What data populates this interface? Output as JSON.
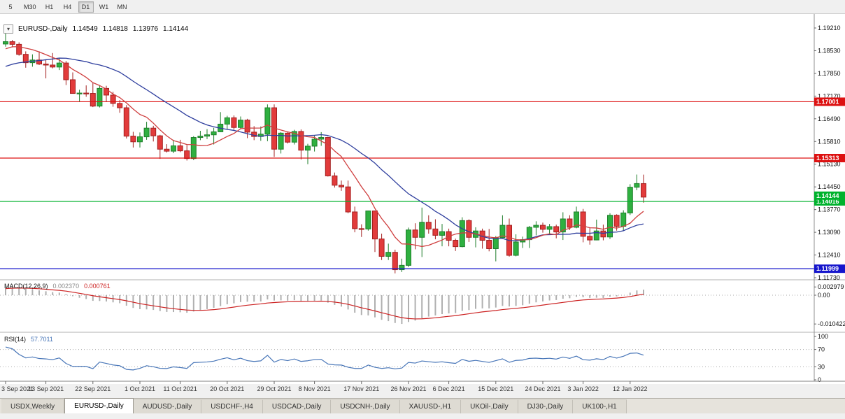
{
  "toolbar": {
    "timeframes": [
      {
        "label": "5",
        "active": false
      },
      {
        "label": "M30",
        "active": false
      },
      {
        "label": "H1",
        "active": false
      },
      {
        "label": "H4",
        "active": false
      },
      {
        "label": "D1",
        "active": true
      },
      {
        "label": "W1",
        "active": false
      },
      {
        "label": "MN",
        "active": false
      }
    ]
  },
  "chart": {
    "collapse_arrow": "▾",
    "symbol_period": "EURUSD-,Daily",
    "open": "1.14549",
    "high": "1.14818",
    "low": "1.13976",
    "close": "1.14144"
  },
  "price_axis": {
    "labels": [
      "1.19210",
      "1.18530",
      "1.17850",
      "1.17170",
      "1.16490",
      "1.15810",
      "1.15130",
      "1.14450",
      "1.13770",
      "1.13090",
      "1.12410",
      "1.11730"
    ]
  },
  "hlines": [
    {
      "price": 1.17001,
      "label": "1.17001",
      "color": "#dd1111"
    },
    {
      "price": 1.15313,
      "label": "1.15313",
      "color": "#dd1111"
    },
    {
      "price": 1.14016,
      "label": "1.14016",
      "color": "#00b22d"
    },
    {
      "price": 1.11999,
      "label": "1.11999",
      "color": "#1515cc"
    }
  ],
  "current_price_tag": {
    "price": 1.14144,
    "label": "1.14144",
    "color": "#00b22d"
  },
  "macd": {
    "name": "MACD(12,26,9)",
    "value_main": "0.002370",
    "value_signal": "0.000761",
    "axis_labels": [
      {
        "text": "0.002979",
        "value": 0.002979
      },
      {
        "text": "0.00",
        "value": 0
      },
      {
        "text": "-0.010422",
        "value": -0.010422
      }
    ],
    "histogram_color": "#b0b0b0",
    "signal_color": "#cc2222"
  },
  "rsi": {
    "name": "RSI(14)",
    "value": "57.7011",
    "axis_labels": [
      {
        "text": "100",
        "value": 100
      },
      {
        "text": "70",
        "value": 70
      },
      {
        "text": "30",
        "value": 30
      },
      {
        "text": "0",
        "value": 0
      }
    ],
    "levels": [
      70,
      30
    ],
    "line_color": "#4876b8"
  },
  "x_axis": {
    "ticks": [
      {
        "index": 0,
        "label": "3 Sep 2021"
      },
      {
        "index": 6,
        "label": "13 Sep 2021"
      },
      {
        "index": 13,
        "label": "22 Sep 2021"
      },
      {
        "index": 20,
        "label": "1 Oct 2021"
      },
      {
        "index": 26,
        "label": "11 Oct 2021"
      },
      {
        "index": 33,
        "label": "20 Oct 2021"
      },
      {
        "index": 40,
        "label": "29 Oct 2021"
      },
      {
        "index": 46,
        "label": "8 Nov 2021"
      },
      {
        "index": 53,
        "label": "17 Nov 2021"
      },
      {
        "index": 60,
        "label": "26 Nov 2021"
      },
      {
        "index": 66,
        "label": "6 Dec 2021"
      },
      {
        "index": 73,
        "label": "15 Dec 2021"
      },
      {
        "index": 80,
        "label": "24 Dec 2021"
      },
      {
        "index": 86,
        "label": "3 Jan 2022"
      },
      {
        "index": 93,
        "label": "12 Jan 2022"
      }
    ]
  },
  "tabs": [
    {
      "label": "USDX,Weekly",
      "active": false
    },
    {
      "label": "EURUSD-,Daily",
      "active": true
    },
    {
      "label": "AUDUSD-,Daily",
      "active": false
    },
    {
      "label": "USDCHF-,H4",
      "active": false
    },
    {
      "label": "USDCAD-,Daily",
      "active": false
    },
    {
      "label": "USDCNH-,Daily",
      "active": false
    },
    {
      "label": "XAUUSD-,H1",
      "active": false
    },
    {
      "label": "UKOil-,Daily",
      "active": false
    },
    {
      "label": "DJ30-,Daily",
      "active": false
    },
    {
      "label": "UK100-,H1",
      "active": false
    }
  ],
  "chart_data": {
    "type": "candlestick",
    "title": "EURUSD-,Daily",
    "ylim": [
      1.1173,
      1.1921
    ],
    "up_color": "#2fb040",
    "down_color": "#e23b3b",
    "ma_fast": {
      "period": 8,
      "color": "#cf3f3f"
    },
    "ma_slow": {
      "period": 21,
      "color": "#2f3f9e"
    },
    "seed_closes_prior": [
      1.1752,
      1.174,
      1.173,
      1.1742,
      1.1756,
      1.1748,
      1.1738,
      1.175,
      1.1765,
      1.178,
      1.1772,
      1.176,
      1.1753,
      1.1762,
      1.1775,
      1.179,
      1.1805,
      1.1797,
      1.181,
      1.1825,
      1.184,
      1.1852,
      1.186,
      1.1868,
      1.1875,
      1.187
    ],
    "dates": [
      "2021-09-03",
      "2021-09-06",
      "2021-09-07",
      "2021-09-08",
      "2021-09-09",
      "2021-09-10",
      "2021-09-13",
      "2021-09-14",
      "2021-09-15",
      "2021-09-16",
      "2021-09-17",
      "2021-09-20",
      "2021-09-21",
      "2021-09-22",
      "2021-09-23",
      "2021-09-24",
      "2021-09-27",
      "2021-09-28",
      "2021-09-29",
      "2021-09-30",
      "2021-10-01",
      "2021-10-04",
      "2021-10-05",
      "2021-10-06",
      "2021-10-07",
      "2021-10-08",
      "2021-10-11",
      "2021-10-12",
      "2021-10-13",
      "2021-10-14",
      "2021-10-15",
      "2021-10-18",
      "2021-10-19",
      "2021-10-20",
      "2021-10-21",
      "2021-10-22",
      "2021-10-25",
      "2021-10-26",
      "2021-10-27",
      "2021-10-28",
      "2021-10-29",
      "2021-11-01",
      "2021-11-02",
      "2021-11-03",
      "2021-11-04",
      "2021-11-05",
      "2021-11-08",
      "2021-11-09",
      "2021-11-10",
      "2021-11-11",
      "2021-11-12",
      "2021-11-15",
      "2021-11-16",
      "2021-11-17",
      "2021-11-18",
      "2021-11-19",
      "2021-11-22",
      "2021-11-23",
      "2021-11-24",
      "2021-11-25",
      "2021-11-26",
      "2021-11-29",
      "2021-11-30",
      "2021-12-01",
      "2021-12-02",
      "2021-12-03",
      "2021-12-06",
      "2021-12-07",
      "2021-12-08",
      "2021-12-09",
      "2021-12-10",
      "2021-12-13",
      "2021-12-14",
      "2021-12-15",
      "2021-12-16",
      "2021-12-17",
      "2021-12-20",
      "2021-12-21",
      "2021-12-22",
      "2021-12-23",
      "2021-12-24",
      "2021-12-27",
      "2021-12-28",
      "2021-12-29",
      "2021-12-30",
      "2021-12-31",
      "2022-01-03",
      "2022-01-04",
      "2022-01-05",
      "2022-01-06",
      "2022-01-07",
      "2022-01-10",
      "2022-01-11",
      "2022-01-12",
      "2022-01-13",
      "2022-01-14"
    ],
    "candles": [
      [
        1.1873,
        1.1909,
        1.1865,
        1.188
      ],
      [
        1.188,
        1.1885,
        1.1863,
        1.1872
      ],
      [
        1.1872,
        1.1878,
        1.1838,
        1.1842
      ],
      [
        1.1842,
        1.1851,
        1.1802,
        1.1817
      ],
      [
        1.1817,
        1.1842,
        1.1805,
        1.1825
      ],
      [
        1.1825,
        1.1851,
        1.181,
        1.1813
      ],
      [
        1.1813,
        1.1827,
        1.177,
        1.181
      ],
      [
        1.181,
        1.1846,
        1.18,
        1.1804
      ],
      [
        1.1804,
        1.1832,
        1.1795,
        1.1816
      ],
      [
        1.1816,
        1.1822,
        1.175,
        1.1766
      ],
      [
        1.1766,
        1.1788,
        1.1724,
        1.1725
      ],
      [
        1.1725,
        1.1736,
        1.17,
        1.1726
      ],
      [
        1.1726,
        1.1749,
        1.1715,
        1.1725
      ],
      [
        1.1725,
        1.1756,
        1.1684,
        1.1687
      ],
      [
        1.1687,
        1.175,
        1.1683,
        1.174
      ],
      [
        1.174,
        1.1748,
        1.1701,
        1.172
      ],
      [
        1.172,
        1.173,
        1.1685,
        1.1695
      ],
      [
        1.1695,
        1.1705,
        1.1667,
        1.1682
      ],
      [
        1.1682,
        1.169,
        1.159,
        1.1597
      ],
      [
        1.1597,
        1.161,
        1.1563,
        1.158
      ],
      [
        1.158,
        1.1608,
        1.1563,
        1.1595
      ],
      [
        1.1595,
        1.164,
        1.1586,
        1.1621
      ],
      [
        1.1621,
        1.1628,
        1.1581,
        1.1598
      ],
      [
        1.1598,
        1.1601,
        1.1529,
        1.1558
      ],
      [
        1.1558,
        1.1573,
        1.1548,
        1.1552
      ],
      [
        1.1552,
        1.1586,
        1.1546,
        1.1568
      ],
      [
        1.1568,
        1.1586,
        1.1549,
        1.1553
      ],
      [
        1.1553,
        1.157,
        1.1524,
        1.153
      ],
      [
        1.153,
        1.1597,
        1.1525,
        1.1593
      ],
      [
        1.1593,
        1.1613,
        1.1585,
        1.1597
      ],
      [
        1.1597,
        1.1618,
        1.1588,
        1.1601
      ],
      [
        1.1601,
        1.1622,
        1.1572,
        1.161
      ],
      [
        1.161,
        1.1669,
        1.1609,
        1.1633
      ],
      [
        1.1633,
        1.1658,
        1.1617,
        1.1652
      ],
      [
        1.1652,
        1.1659,
        1.1616,
        1.1623
      ],
      [
        1.1623,
        1.1656,
        1.162,
        1.1645
      ],
      [
        1.1645,
        1.1649,
        1.1591,
        1.1609
      ],
      [
        1.1609,
        1.1627,
        1.1585,
        1.1596
      ],
      [
        1.1596,
        1.1626,
        1.1583,
        1.1603
      ],
      [
        1.1603,
        1.1692,
        1.1582,
        1.1682
      ],
      [
        1.1682,
        1.1692,
        1.1535,
        1.1558
      ],
      [
        1.1558,
        1.1609,
        1.1545,
        1.1606
      ],
      [
        1.1606,
        1.161,
        1.1575,
        1.1579
      ],
      [
        1.1579,
        1.1616,
        1.1572,
        1.1611
      ],
      [
        1.1611,
        1.1617,
        1.1527,
        1.1555
      ],
      [
        1.1555,
        1.1574,
        1.1513,
        1.1567
      ],
      [
        1.1567,
        1.1598,
        1.1551,
        1.1588
      ],
      [
        1.1588,
        1.1609,
        1.1568,
        1.1593
      ],
      [
        1.1593,
        1.1595,
        1.1476,
        1.1478
      ],
      [
        1.1478,
        1.1488,
        1.1443,
        1.145
      ],
      [
        1.145,
        1.1464,
        1.1433,
        1.1445
      ],
      [
        1.1445,
        1.1464,
        1.1366,
        1.137
      ],
      [
        1.137,
        1.1386,
        1.1309,
        1.132
      ],
      [
        1.132,
        1.1333,
        1.1295,
        1.1319
      ],
      [
        1.1319,
        1.1374,
        1.1314,
        1.1373
      ],
      [
        1.1373,
        1.1374,
        1.125,
        1.1289
      ],
      [
        1.1289,
        1.1305,
        1.1226,
        1.1237
      ],
      [
        1.1237,
        1.1275,
        1.1226,
        1.1249
      ],
      [
        1.1249,
        1.1257,
        1.1186,
        1.1197
      ],
      [
        1.1197,
        1.123,
        1.119,
        1.121
      ],
      [
        1.121,
        1.1323,
        1.1205,
        1.1316
      ],
      [
        1.1316,
        1.1336,
        1.1258,
        1.1294
      ],
      [
        1.1294,
        1.1383,
        1.1235,
        1.1339
      ],
      [
        1.1339,
        1.136,
        1.1305,
        1.1319
      ],
      [
        1.1319,
        1.1348,
        1.1288,
        1.13
      ],
      [
        1.13,
        1.1334,
        1.1267,
        1.1311
      ],
      [
        1.1311,
        1.132,
        1.1267,
        1.1285
      ],
      [
        1.1285,
        1.129,
        1.1253,
        1.1266
      ],
      [
        1.1266,
        1.1354,
        1.1264,
        1.1344
      ],
      [
        1.1344,
        1.1348,
        1.128,
        1.1294
      ],
      [
        1.1294,
        1.1324,
        1.1264,
        1.1313
      ],
      [
        1.1313,
        1.132,
        1.126,
        1.1285
      ],
      [
        1.1285,
        1.1319,
        1.1252,
        1.126
      ],
      [
        1.126,
        1.1298,
        1.1222,
        1.1293
      ],
      [
        1.1293,
        1.136,
        1.129,
        1.133
      ],
      [
        1.133,
        1.135,
        1.1236,
        1.124
      ],
      [
        1.124,
        1.1303,
        1.1237,
        1.128
      ],
      [
        1.128,
        1.1296,
        1.1262,
        1.1287
      ],
      [
        1.1287,
        1.1328,
        1.1262,
        1.1324
      ],
      [
        1.1324,
        1.1342,
        1.13,
        1.133
      ],
      [
        1.133,
        1.1338,
        1.1308,
        1.1318
      ],
      [
        1.1318,
        1.1334,
        1.1304,
        1.1326
      ],
      [
        1.1326,
        1.1332,
        1.1291,
        1.131
      ],
      [
        1.131,
        1.1369,
        1.1286,
        1.1349
      ],
      [
        1.1349,
        1.136,
        1.1316,
        1.1324
      ],
      [
        1.1324,
        1.1386,
        1.1321,
        1.137
      ],
      [
        1.137,
        1.1379,
        1.1279,
        1.1297
      ],
      [
        1.1297,
        1.1324,
        1.1272,
        1.1286
      ],
      [
        1.1286,
        1.1347,
        1.1285,
        1.1313
      ],
      [
        1.1313,
        1.1332,
        1.1285,
        1.1295
      ],
      [
        1.1295,
        1.1366,
        1.1289,
        1.136
      ],
      [
        1.136,
        1.1363,
        1.1314,
        1.1327
      ],
      [
        1.1327,
        1.1375,
        1.1313,
        1.1367
      ],
      [
        1.1367,
        1.1453,
        1.1361,
        1.1444
      ],
      [
        1.1444,
        1.1482,
        1.1435,
        1.1455
      ],
      [
        1.14549,
        1.14818,
        1.13976,
        1.14144
      ]
    ]
  }
}
